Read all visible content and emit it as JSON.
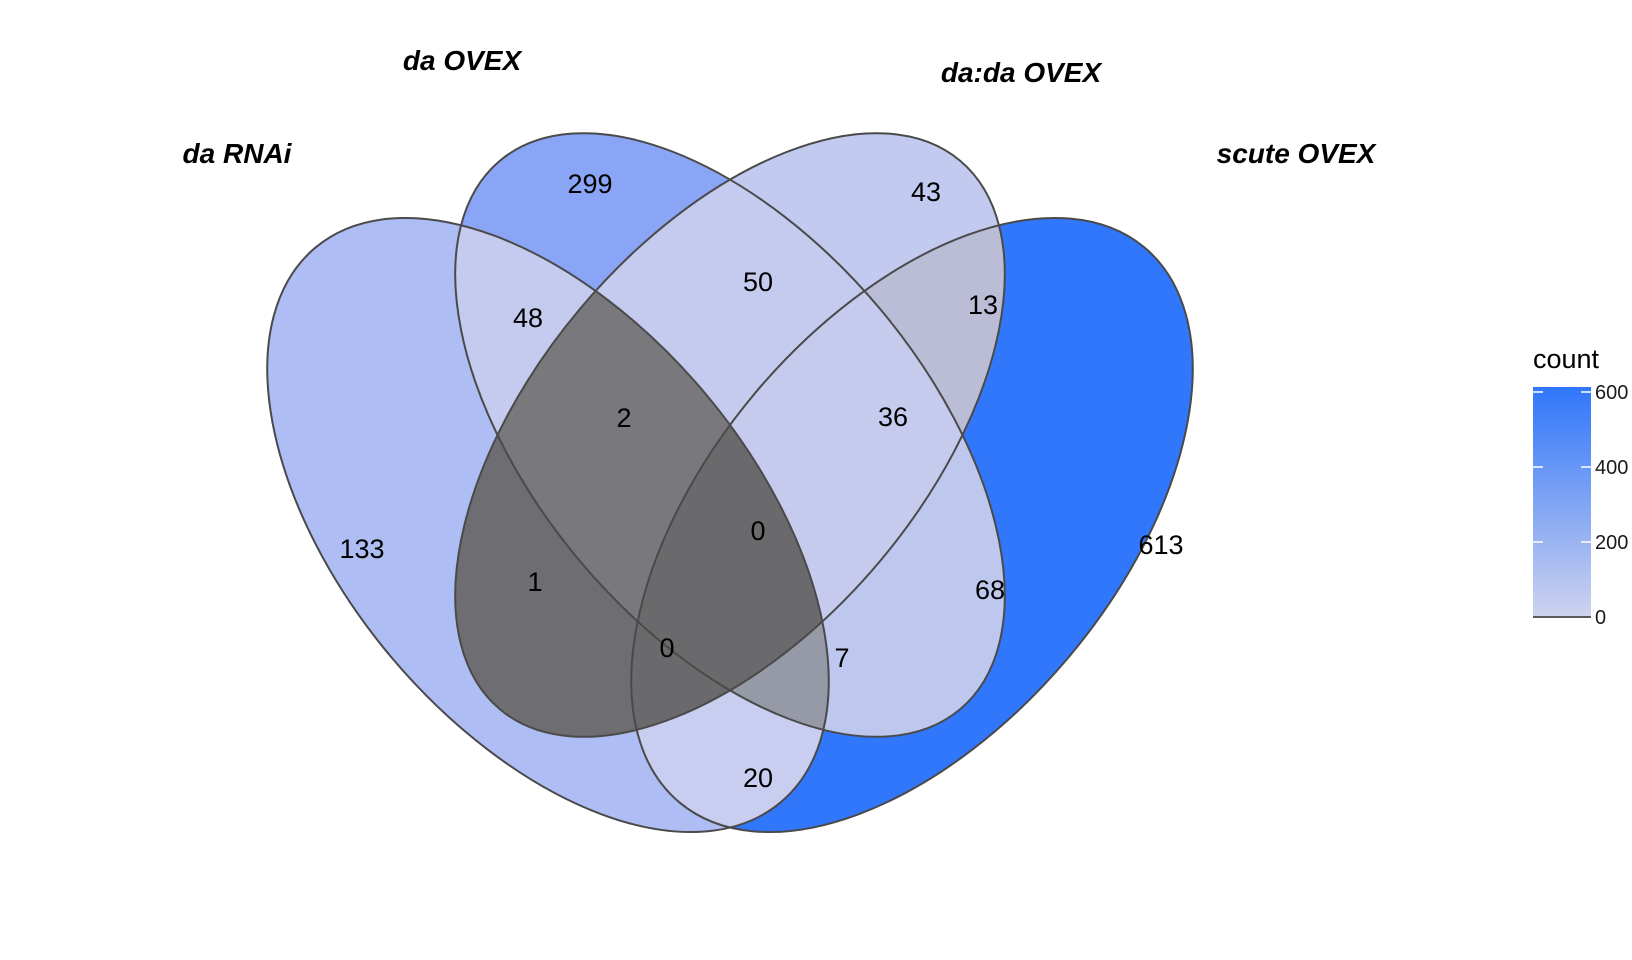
{
  "sets": [
    "da RNAi",
    "da OVEX",
    "da:da OVEX",
    "scute OVEX"
  ],
  "regions": [
    {
      "sets": [
        0
      ],
      "count": 133,
      "color": "#aebdf3"
    },
    {
      "sets": [
        1
      ],
      "count": 299,
      "color": "#8ba5f6"
    },
    {
      "sets": [
        2
      ],
      "count": 43,
      "color": "#c2caf0"
    },
    {
      "sets": [
        3
      ],
      "count": 613,
      "color": "#3077fb"
    },
    {
      "sets": [
        0,
        1
      ],
      "count": 48,
      "color": "#c4cbef"
    },
    {
      "sets": [
        1,
        2
      ],
      "count": 50,
      "color": "#c4cbef"
    },
    {
      "sets": [
        2,
        3
      ],
      "count": 13,
      "color": "#bbbdd6"
    },
    {
      "sets": [
        0,
        2
      ],
      "count": 1,
      "color": "#6e6e72"
    },
    {
      "sets": [
        1,
        3
      ],
      "count": 68,
      "color": "#bec8ef"
    },
    {
      "sets": [
        0,
        3
      ],
      "count": 20,
      "color": "#c9cdf0"
    },
    {
      "sets": [
        0,
        1,
        2
      ],
      "count": 2,
      "color": "#79797d"
    },
    {
      "sets": [
        1,
        2,
        3
      ],
      "count": 36,
      "color": "#c6cbed"
    },
    {
      "sets": [
        0,
        2,
        3
      ],
      "count": 0,
      "color": "#6a6a6d"
    },
    {
      "sets": [
        0,
        1,
        3
      ],
      "count": 7,
      "color": "#9699a6"
    },
    {
      "sets": [
        0,
        1,
        2,
        3
      ],
      "count": 0,
      "color": "#6a6a6d"
    }
  ],
  "legend": {
    "title": "count",
    "ticks": [
      "600",
      "400",
      "200",
      "0"
    ],
    "color_high": "#2f76fb",
    "color_low": "#cfd3ee"
  }
}
